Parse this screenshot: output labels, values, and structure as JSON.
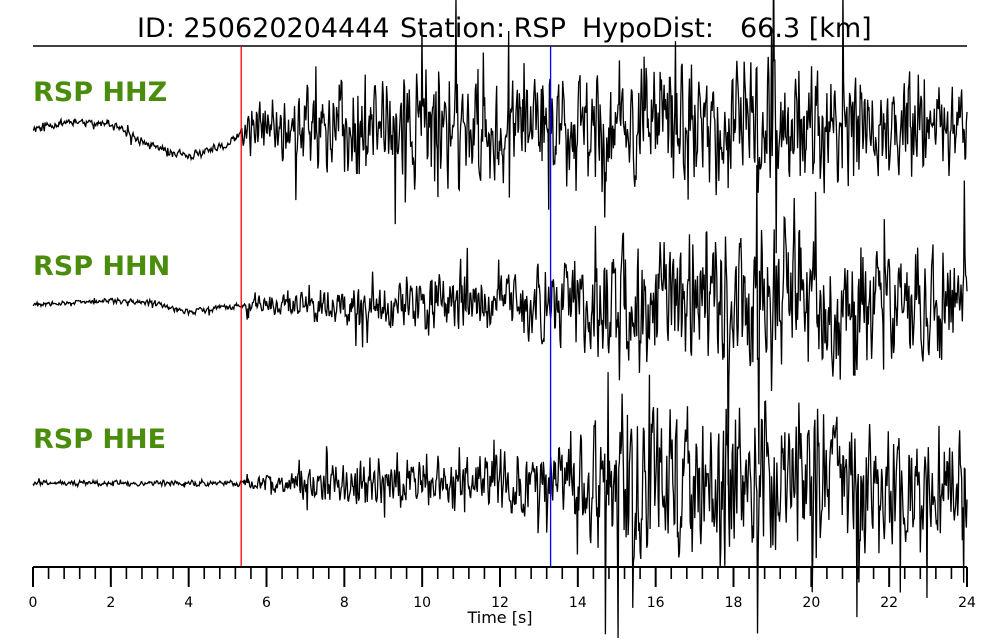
{
  "title": {
    "id_label": "ID: 250620204444",
    "station_label": "Station: RSP",
    "dist_label": "HypoDist:",
    "dist_value": "66.3 [km]"
  },
  "colors": {
    "trace": "#000000",
    "label": "#4a8c0b",
    "p_pick": "#ff0000",
    "s_pick": "#0000ff"
  },
  "chart_data": {
    "type": "line",
    "title": "ID: 250620204444   Station: RSP   HypoDist:    66.3 [km]",
    "xlabel": "Time [s]",
    "ylabel": "",
    "xlim": [
      0,
      24
    ],
    "x_ticks": [
      0,
      2,
      4,
      6,
      8,
      10,
      12,
      14,
      16,
      18,
      20,
      22,
      24
    ],
    "minor_tick_step": 0.4,
    "grid": false,
    "picks": [
      {
        "phase": "P",
        "time": 5.35,
        "color": "#ff0000"
      },
      {
        "phase": "S",
        "time": 13.3,
        "color": "#0000ff"
      }
    ],
    "series": [
      {
        "name": "RSP HHZ",
        "envelope": [
          [
            0,
            0.04
          ],
          [
            5.3,
            0.04
          ],
          [
            5.5,
            0.22
          ],
          [
            7,
            0.38
          ],
          [
            10,
            0.5
          ],
          [
            13.3,
            0.52
          ],
          [
            15,
            0.58
          ],
          [
            17,
            0.6
          ],
          [
            20,
            0.56
          ],
          [
            22,
            0.45
          ],
          [
            24,
            0.4
          ]
        ],
        "baseline": [
          [
            0,
            0
          ],
          [
            1,
            0.05
          ],
          [
            2,
            0.02
          ],
          [
            3,
            -0.12
          ],
          [
            4,
            -0.2
          ],
          [
            5,
            -0.12
          ],
          [
            5.3,
            -0.05
          ],
          [
            6,
            0
          ],
          [
            24,
            0
          ]
        ]
      },
      {
        "name": "RSP HHN",
        "envelope": [
          [
            0,
            0.02
          ],
          [
            5.3,
            0.03
          ],
          [
            6,
            0.1
          ],
          [
            8,
            0.18
          ],
          [
            10,
            0.24
          ],
          [
            12.5,
            0.28
          ],
          [
            13.3,
            0.35
          ],
          [
            15,
            0.6
          ],
          [
            17,
            0.68
          ],
          [
            19.5,
            0.72
          ],
          [
            21,
            0.6
          ],
          [
            24,
            0.45
          ]
        ],
        "baseline": [
          [
            0,
            0
          ],
          [
            2,
            0.03
          ],
          [
            3,
            0.02
          ],
          [
            4,
            -0.05
          ],
          [
            5.3,
            0
          ],
          [
            24,
            0
          ]
        ]
      },
      {
        "name": "RSP HHE",
        "envelope": [
          [
            0,
            0.02
          ],
          [
            5.3,
            0.03
          ],
          [
            6,
            0.08
          ],
          [
            8,
            0.2
          ],
          [
            10,
            0.22
          ],
          [
            13.3,
            0.3
          ],
          [
            15,
            0.72
          ],
          [
            17,
            0.68
          ],
          [
            18,
            0.72
          ],
          [
            20,
            0.72
          ],
          [
            22,
            0.5
          ],
          [
            24,
            0.45
          ]
        ],
        "baseline": [
          [
            0,
            0
          ],
          [
            24,
            0
          ]
        ]
      }
    ]
  }
}
